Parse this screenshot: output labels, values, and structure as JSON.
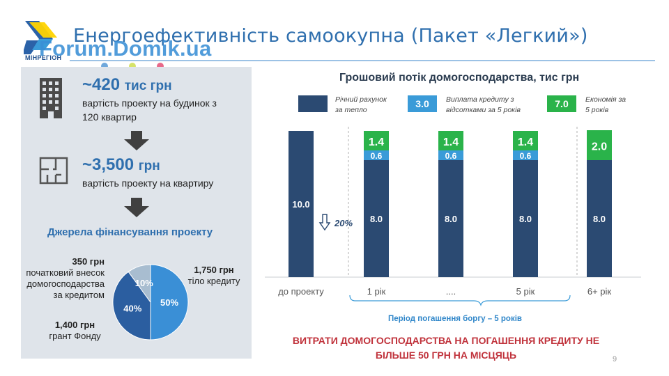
{
  "header": {
    "title": "Енергоефективність самоокупна (Пакет «Легкий»)",
    "logo_text": "МІНРЕГІОН",
    "watermark": "Forum.Domik.ua"
  },
  "colors": {
    "navy": "#2b4a72",
    "blue": "#3a9bd8",
    "green": "#2ab34a",
    "accent": "#2f6fae",
    "red": "#c0323b"
  },
  "left": {
    "house_cost": {
      "value": "~420",
      "unit": "тис грн",
      "desc": "вартість проекту на будинок з 120 квартир"
    },
    "flat_cost": {
      "value": "~3,500",
      "unit": "грн",
      "desc": "вартість проекту на квартиру"
    },
    "sources_title": "Джерела фінансування проекту",
    "pie": {
      "slices": [
        {
          "label": "50%",
          "value": 50,
          "color": "#3a8fd6"
        },
        {
          "label": "40%",
          "value": 40,
          "color": "#2b5ea0"
        },
        {
          "label": "10%",
          "value": 10,
          "color": "#a8bdd0"
        }
      ],
      "labels": {
        "credit_amount": "1,750 грн",
        "credit_desc": "тіло кредиту",
        "down_amount": "350 грн",
        "down_desc_1": "початковий внесок",
        "down_desc_2": "домогосподарства",
        "down_desc_3": "за кредитом",
        "grant_amount": "1,400 грн",
        "grant_desc": "грант Фонду"
      }
    }
  },
  "legend": {
    "items": [
      {
        "swatch": "",
        "text_1": "Річний рахунок",
        "text_2": "за тепло"
      },
      {
        "swatch": "3.0",
        "text_1": "Виплата кредиту з",
        "text_2": "відсотками за 5 років"
      },
      {
        "swatch": "7.0",
        "text_1": "Економія за",
        "text_2": "5 років"
      }
    ]
  },
  "chart_data": {
    "type": "bar",
    "title": "Грошовий потік домогосподарства, тис грн",
    "categories": [
      "до проекту",
      "1 рік",
      "....",
      "5 рік",
      "6+ рік"
    ],
    "series": [
      {
        "name": "Річний рахунок за тепло",
        "values": [
          10.0,
          8.0,
          8.0,
          8.0,
          8.0
        ],
        "labels": [
          "10.0",
          "8.0",
          "8.0",
          "8.0",
          "8.0"
        ]
      },
      {
        "name": "Виплата кредиту з відсотками за 5 років",
        "values": [
          0,
          0.6,
          0.6,
          0.6,
          0
        ],
        "labels": [
          "",
          "0.6",
          "0.6",
          "0.6",
          ""
        ]
      },
      {
        "name": "Економія за 5 років",
        "values": [
          0,
          1.4,
          1.4,
          1.4,
          2.0
        ],
        "labels": [
          "",
          "1.4",
          "1.4",
          "1.4",
          "2.0"
        ]
      }
    ],
    "ylim": [
      0,
      10
    ],
    "annotation": "20%",
    "period_label": "Період погашення боргу – 5 років"
  },
  "conclusion": {
    "line1": "ВИТРАТИ ДОМОГОСПОДАРСТВА НА ПОГАШЕННЯ КРЕДИТУ НЕ",
    "line2": "БІЛЬШЕ 50 ГРН НА МІСЦЯЦЬ"
  },
  "page_number": "9"
}
